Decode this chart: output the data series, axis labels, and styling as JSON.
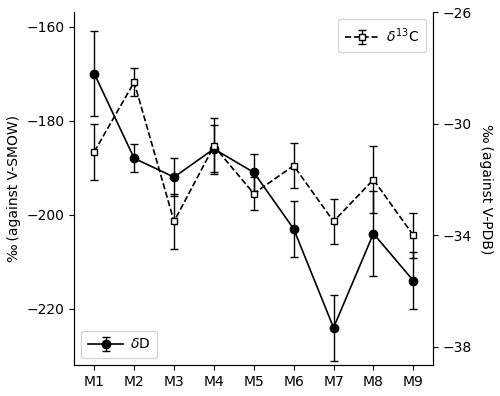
{
  "categories": [
    "M1",
    "M2",
    "M3",
    "M4",
    "M5",
    "M6",
    "M7",
    "M8",
    "M9"
  ],
  "dD_values": [
    -170,
    -188,
    -192,
    -186,
    -191,
    -203,
    -224,
    -204,
    -214
  ],
  "dD_errors": [
    9,
    3,
    4,
    5,
    4,
    6,
    7,
    9,
    6
  ],
  "d13C_values": [
    -31.0,
    -28.5,
    -33.5,
    -30.8,
    -32.5,
    -31.5,
    -33.5,
    -32.0,
    -34.0
  ],
  "d13C_errors": [
    1.0,
    0.5,
    1.0,
    1.0,
    0.6,
    0.8,
    0.8,
    1.2,
    0.8
  ],
  "left_ylim": [
    -232,
    -157
  ],
  "right_ylim": [
    -38.667,
    -26.333
  ],
  "left_yticks": [
    -160,
    -180,
    -200,
    -220
  ],
  "right_yticks": [
    -26,
    -30,
    -34,
    -38
  ],
  "left_ylabel": "‰ (against V-SMOW)",
  "right_ylabel": "‰ (against V-PDB)",
  "dD_label": "δD",
  "d13C_label": "δ¹³C",
  "background_color": "#ffffff",
  "line_color": "#000000"
}
